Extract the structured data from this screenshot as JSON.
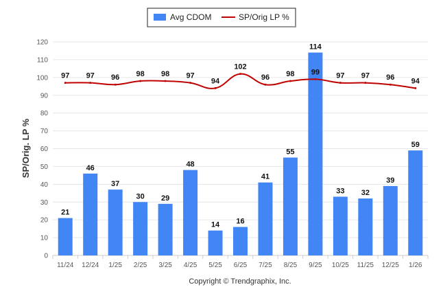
{
  "chart_data": {
    "type": "bar+line",
    "categories": [
      "11/24",
      "12/24",
      "1/25",
      "2/25",
      "3/25",
      "4/25",
      "5/25",
      "6/25",
      "7/25",
      "8/25",
      "9/25",
      "10/25",
      "11/25",
      "12/25",
      "1/26"
    ],
    "series": [
      {
        "name": "Avg CDOM",
        "type": "bar",
        "color": "#4285f4",
        "values": [
          21,
          46,
          37,
          30,
          29,
          48,
          14,
          16,
          41,
          55,
          114,
          33,
          32,
          39,
          59
        ]
      },
      {
        "name": "SP/Orig LP %",
        "type": "line",
        "color": "#c00000",
        "values": [
          97,
          97,
          96,
          98,
          98,
          97,
          94,
          102,
          96,
          98,
          99,
          97,
          97,
          96,
          94
        ]
      }
    ],
    "ylabel": "SP/Orig. LP %",
    "xlabel": "",
    "ylim": [
      0,
      120
    ],
    "yticks": [
      0,
      10,
      20,
      30,
      40,
      50,
      60,
      70,
      80,
      90,
      100,
      110,
      120
    ],
    "grid": true,
    "legend_position": "top-center",
    "credit": "Copyright © Trendgraphix, Inc."
  }
}
